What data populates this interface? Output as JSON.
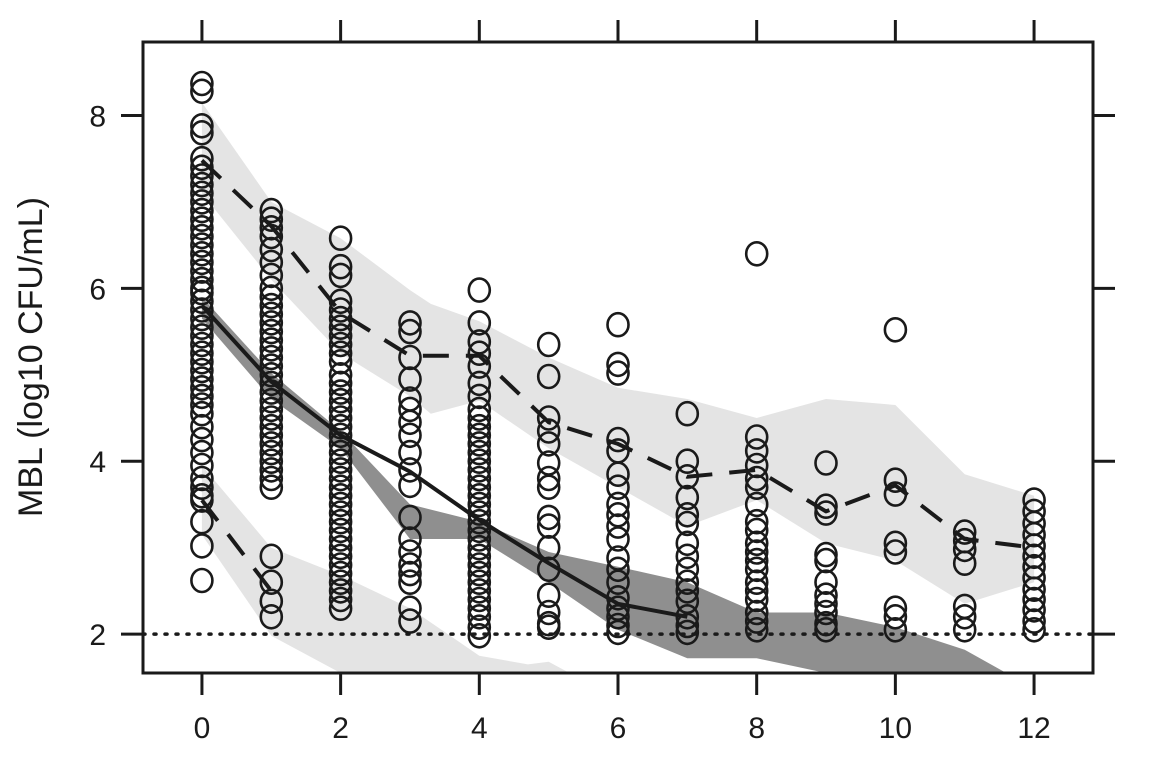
{
  "chart_data": {
    "type": "scatter",
    "title": "",
    "xlabel": "",
    "ylabel": "MBL (log10 CFU/mL)",
    "xlim": [
      -0.85,
      12.85
    ],
    "ylim": [
      1.55,
      8.85
    ],
    "x_ticks": [
      0,
      2,
      4,
      6,
      8,
      10,
      12
    ],
    "x_tick_labels": [
      "0",
      "2",
      "4",
      "6",
      "8",
      "10",
      "12"
    ],
    "y_ticks": [
      2,
      4,
      6,
      8
    ],
    "y_tick_labels": [
      "2",
      "4",
      "6",
      "8"
    ],
    "grid": false,
    "reference_line": {
      "y": 2,
      "style": "dotted"
    },
    "colors": {
      "points": "#1a1a1a",
      "lines": "#1a1a1a",
      "outer_band": "#e4e4e4",
      "median_band": "#8f8f8f",
      "frame": "#1a1a1a"
    },
    "observed": [
      {
        "x": 0,
        "y": [
          8.37,
          8.28,
          7.88,
          7.8,
          7.5,
          7.4,
          7.3,
          7.2,
          7.1,
          7.0,
          6.9,
          6.8,
          6.7,
          6.6,
          6.5,
          6.4,
          6.3,
          6.2,
          6.1,
          6.0,
          5.95,
          5.85,
          5.75,
          5.65,
          5.55,
          5.45,
          5.35,
          5.25,
          5.15,
          5.05,
          4.95,
          4.85,
          4.75,
          4.65,
          4.55,
          4.4,
          4.25,
          4.1,
          3.95,
          3.8,
          3.7,
          3.6,
          3.55,
          3.3,
          3.02,
          2.62
        ]
      },
      {
        "x": 1,
        "y": [
          6.9,
          6.8,
          6.7,
          6.6,
          6.45,
          6.3,
          6.15,
          6.0,
          5.9,
          5.8,
          5.7,
          5.6,
          5.5,
          5.4,
          5.3,
          5.2,
          5.1,
          5.0,
          4.9,
          4.8,
          4.7,
          4.6,
          4.5,
          4.4,
          4.3,
          4.2,
          4.1,
          4.0,
          3.9,
          3.8,
          3.7,
          2.9,
          2.6,
          2.38,
          2.2
        ]
      },
      {
        "x": 2,
        "y": [
          6.58,
          6.25,
          6.15,
          5.85,
          5.75,
          5.65,
          5.55,
          5.45,
          5.35,
          5.25,
          5.15,
          5.0,
          4.9,
          4.8,
          4.7,
          4.6,
          4.5,
          4.4,
          4.3,
          4.2,
          4.1,
          4.0,
          3.9,
          3.8,
          3.7,
          3.6,
          3.5,
          3.4,
          3.3,
          3.2,
          3.1,
          3.0,
          2.9,
          2.8,
          2.7,
          2.6,
          2.5,
          2.4,
          2.3
        ]
      },
      {
        "x": 3,
        "y": [
          5.6,
          5.5,
          5.2,
          4.95,
          4.72,
          4.6,
          4.45,
          4.3,
          4.1,
          3.9,
          3.72,
          3.35,
          3.1,
          2.95,
          2.8,
          2.7,
          2.6,
          2.3,
          2.15
        ]
      },
      {
        "x": 4,
        "y": [
          5.98,
          5.6,
          5.38,
          5.25,
          5.1,
          4.9,
          4.75,
          4.6,
          4.5,
          4.4,
          4.3,
          4.2,
          4.1,
          4.0,
          3.9,
          3.8,
          3.7,
          3.6,
          3.5,
          3.4,
          3.3,
          3.2,
          3.1,
          3.0,
          2.9,
          2.8,
          2.7,
          2.6,
          2.5,
          2.4,
          2.3,
          2.2,
          2.08,
          1.98
        ]
      },
      {
        "x": 5,
        "y": [
          5.35,
          4.98,
          4.5,
          4.35,
          4.2,
          3.98,
          3.8,
          3.7,
          3.35,
          3.25,
          3.0,
          2.75,
          2.45,
          2.25,
          2.12,
          2.08
        ]
      },
      {
        "x": 6,
        "y": [
          5.58,
          5.12,
          5.02,
          4.25,
          4.12,
          3.85,
          3.7,
          3.5,
          3.38,
          3.25,
          3.1,
          2.88,
          2.75,
          2.6,
          2.42,
          2.3,
          2.2,
          2.1,
          2.02
        ]
      },
      {
        "x": 7,
        "y": [
          4.55,
          4.0,
          3.82,
          3.58,
          3.38,
          3.28,
          3.05,
          2.9,
          2.75,
          2.6,
          2.5,
          2.38,
          2.2,
          2.1,
          2.02
        ]
      },
      {
        "x": 8,
        "y": [
          6.4,
          4.28,
          4.12,
          3.95,
          3.8,
          3.7,
          3.5,
          3.3,
          3.2,
          3.05,
          2.95,
          2.85,
          2.75,
          2.6,
          2.5,
          2.4,
          2.25,
          2.15,
          2.05
        ]
      },
      {
        "x": 9,
        "y": [
          3.98,
          3.48,
          3.4,
          2.92,
          2.85,
          2.6,
          2.45,
          2.35,
          2.25,
          2.12,
          2.05
        ]
      },
      {
        "x": 10,
        "y": [
          5.52,
          3.78,
          3.62,
          3.05,
          2.95,
          2.3,
          2.2,
          2.05
        ]
      },
      {
        "x": 11,
        "y": [
          3.18,
          3.08,
          2.98,
          2.82,
          2.32,
          2.2,
          2.05
        ]
      },
      {
        "x": 12,
        "y": [
          3.55,
          3.42,
          3.28,
          3.15,
          3.02,
          2.9,
          2.78,
          2.65,
          2.52,
          2.4,
          2.28,
          2.15,
          2.05
        ]
      }
    ],
    "series": [
      {
        "style": "solid",
        "x": [
          0,
          1,
          2,
          3,
          4,
          5,
          6,
          7
        ],
        "y": [
          5.8,
          4.92,
          4.3,
          3.88,
          3.32,
          2.82,
          2.35,
          2.2
        ]
      },
      {
        "style": "dashed",
        "x": [
          0,
          1,
          2,
          3,
          4,
          5,
          6,
          7,
          8,
          9,
          10,
          11,
          12
        ],
        "y": [
          7.48,
          6.72,
          5.72,
          5.22,
          5.22,
          4.45,
          4.2,
          3.82,
          3.9,
          3.42,
          3.72,
          3.1,
          3.0
        ]
      },
      {
        "style": "dashed",
        "x": [
          0,
          1
        ],
        "y": [
          3.55,
          2.5
        ]
      }
    ],
    "bands": [
      {
        "role": "upper",
        "fill": "outer_band",
        "x": [
          0,
          1,
          2,
          3,
          3.3,
          4,
          5,
          6,
          7,
          8,
          9,
          10,
          11,
          12
        ],
        "upper": [
          8.15,
          7.0,
          6.58,
          5.98,
          5.82,
          5.62,
          5.2,
          4.85,
          4.72,
          4.5,
          4.72,
          4.65,
          3.85,
          3.6
        ],
        "lower": [
          7.1,
          6.1,
          5.25,
          4.75,
          4.55,
          4.7,
          4.15,
          3.7,
          3.25,
          3.55,
          3.05,
          2.85,
          2.35,
          2.6
        ]
      },
      {
        "role": "median",
        "fill": "median_band",
        "x": [
          0,
          1,
          2,
          3,
          4,
          5,
          6,
          7,
          8,
          9,
          10,
          11,
          11.6
        ],
        "upper": [
          5.9,
          5.02,
          4.35,
          3.5,
          3.3,
          2.95,
          2.78,
          2.6,
          2.25,
          2.25,
          2.08,
          1.82,
          1.55
        ],
        "lower": [
          5.65,
          4.72,
          4.15,
          3.1,
          3.1,
          2.6,
          2.05,
          1.72,
          1.72,
          1.55,
          1.55,
          1.55,
          1.55
        ]
      },
      {
        "role": "lower",
        "fill": "outer_band",
        "x": [
          0,
          1,
          2,
          3,
          4,
          4.7,
          5.0,
          5.3
        ],
        "upper": [
          3.95,
          3.0,
          2.68,
          2.3,
          1.75,
          1.65,
          1.68,
          1.55
        ],
        "lower": [
          3.15,
          1.98,
          1.55,
          1.55,
          1.55,
          1.55,
          1.55,
          1.55
        ]
      }
    ]
  }
}
